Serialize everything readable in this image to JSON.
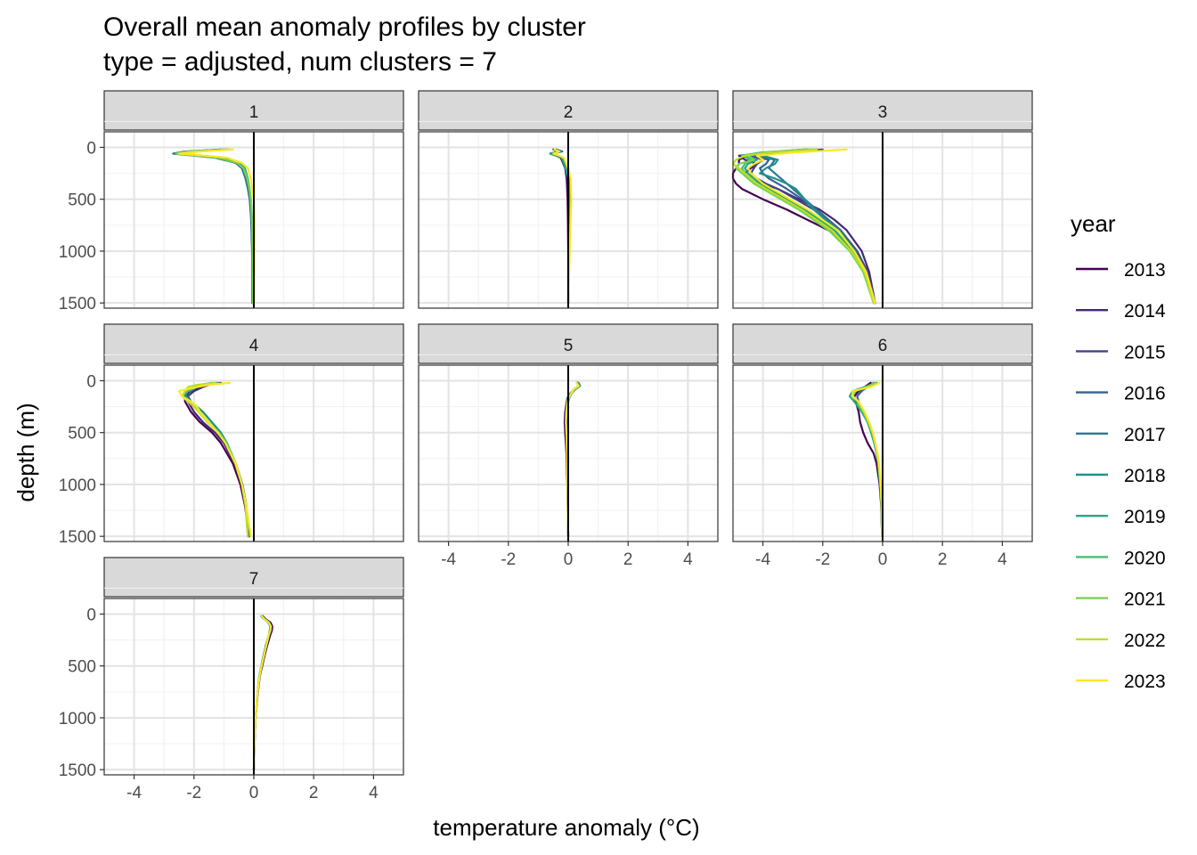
{
  "chart_data": {
    "type": "line",
    "title": "Overall mean anomaly profiles by cluster",
    "subtitle": "type = adjusted, num clusters = 7",
    "xlabel": "temperature anomaly (°C)",
    "ylabel": "depth (m)",
    "xlim": [
      -5,
      5
    ],
    "ylim": [
      1550,
      -150
    ],
    "x_ticks": [
      -4,
      -2,
      0,
      2,
      4
    ],
    "y_ticks": [
      0,
      500,
      1000,
      1500
    ],
    "x_tick_labels": [
      "-4",
      "-2",
      "0",
      "2",
      "4"
    ],
    "y_tick_labels": [
      "0",
      "500",
      "1000",
      "1500"
    ],
    "grid": true,
    "zero_line": 0,
    "legend": {
      "title": "year",
      "position": "right",
      "items": [
        {
          "label": "2013",
          "color": "#440154"
        },
        {
          "label": "2014",
          "color": "#482576"
        },
        {
          "label": "2015",
          "color": "#414487"
        },
        {
          "label": "2016",
          "color": "#35608D"
        },
        {
          "label": "2017",
          "color": "#2A788E"
        },
        {
          "label": "2018",
          "color": "#21908C"
        },
        {
          "label": "2019",
          "color": "#22A884"
        },
        {
          "label": "2020",
          "color": "#43BF71"
        },
        {
          "label": "2021",
          "color": "#7AD151"
        },
        {
          "label": "2022",
          "color": "#BBDF27"
        },
        {
          "label": "2023",
          "color": "#FDE725"
        }
      ]
    },
    "panels": [
      {
        "label": "1",
        "depth": [
          20,
          40,
          60,
          80,
          100,
          150,
          200,
          300,
          400,
          500,
          700,
          1000,
          1500
        ],
        "series": [
          {
            "year": "2013",
            "values": [
              -1.1,
              -2.2,
              -2.6,
              -1.9,
              -1.2,
              -0.6,
              -0.4,
              -0.25,
              -0.18,
              -0.12,
              -0.08,
              -0.05,
              -0.05
            ]
          },
          {
            "year": "2015",
            "values": [
              -0.9,
              -2.1,
              -2.5,
              -1.8,
              -1.1,
              -0.5,
              -0.35,
              -0.22,
              -0.16,
              -0.11,
              -0.07,
              -0.05,
              -0.05
            ]
          },
          {
            "year": "2017",
            "values": [
              -1.0,
              -2.3,
              -2.7,
              -2.0,
              -1.3,
              -0.6,
              -0.4,
              -0.28,
              -0.2,
              -0.14,
              -0.09,
              -0.06,
              -0.05
            ]
          },
          {
            "year": "2019",
            "values": [
              -0.8,
              -2.0,
              -2.4,
              -1.7,
              -1.0,
              -0.5,
              -0.3,
              -0.2,
              -0.14,
              -0.1,
              -0.06,
              -0.04,
              -0.04
            ]
          },
          {
            "year": "2021",
            "values": [
              -0.9,
              -2.2,
              -2.6,
              -1.9,
              -1.2,
              -0.55,
              -0.35,
              -0.22,
              -0.15,
              -0.1,
              -0.06,
              -0.04,
              -0.04
            ]
          },
          {
            "year": "2023",
            "values": [
              -0.7,
              -1.8,
              -2.5,
              -1.6,
              -0.9,
              -0.4,
              -0.2,
              -0.1,
              -0.05,
              0.0,
              0.02,
              0.02,
              0.0
            ]
          }
        ]
      },
      {
        "label": "2",
        "depth": [
          20,
          40,
          60,
          80,
          100,
          200,
          300,
          500,
          700,
          1000,
          1500
        ],
        "series": [
          {
            "year": "2013",
            "values": [
              -0.5,
              -0.3,
              -0.6,
              -0.4,
              -0.25,
              -0.1,
              -0.05,
              -0.02,
              -0.01,
              0.0,
              0.0
            ]
          },
          {
            "year": "2016",
            "values": [
              -0.4,
              -0.2,
              -0.55,
              -0.35,
              -0.2,
              -0.08,
              0.02,
              0.05,
              0.05,
              0.03,
              0.0
            ]
          },
          {
            "year": "2019",
            "values": [
              -0.5,
              -0.25,
              -0.6,
              -0.38,
              -0.22,
              -0.09,
              0.0,
              0.04,
              0.04,
              0.02,
              0.0
            ]
          },
          {
            "year": "2023",
            "values": [
              -0.45,
              -0.3,
              -0.5,
              -0.3,
              -0.15,
              0.0,
              0.08,
              0.1,
              0.08,
              0.05,
              0.0
            ]
          }
        ]
      },
      {
        "label": "3",
        "depth": [
          20,
          50,
          80,
          120,
          160,
          200,
          250,
          300,
          350,
          400,
          500,
          600,
          700,
          800,
          1000,
          1200,
          1500
        ],
        "series": [
          {
            "year": "2013",
            "values": [
              -2.2,
              -3.5,
              -4.5,
              -4.8,
              -4.8,
              -4.9,
              -5.0,
              -5.0,
              -4.9,
              -4.7,
              -4.0,
              -3.2,
              -2.5,
              -1.8,
              -1.0,
              -0.55,
              -0.25
            ]
          },
          {
            "year": "2014",
            "values": [
              -2.5,
              -3.8,
              -4.8,
              -4.6,
              -4.2,
              -4.4,
              -4.6,
              -4.4,
              -4.0,
              -3.5,
              -2.8,
              -2.1,
              -1.6,
              -1.2,
              -0.7,
              -0.45,
              -0.25
            ]
          },
          {
            "year": "2015",
            "values": [
              -2.0,
              -3.6,
              -4.4,
              -4.0,
              -4.2,
              -4.3,
              -4.4,
              -4.2,
              -3.9,
              -3.5,
              -2.9,
              -2.3,
              -1.8,
              -1.4,
              -0.85,
              -0.5,
              -0.25
            ]
          },
          {
            "year": "2016",
            "values": [
              -2.6,
              -3.9,
              -4.4,
              -3.8,
              -3.9,
              -4.1,
              -4.0,
              -3.8,
              -3.5,
              -3.2,
              -2.7,
              -2.2,
              -1.8,
              -1.4,
              -0.9,
              -0.55,
              -0.25
            ]
          },
          {
            "year": "2017",
            "values": [
              -2.3,
              -3.7,
              -4.2,
              -3.6,
              -3.7,
              -3.8,
              -3.6,
              -3.4,
              -3.2,
              -3.0,
              -2.6,
              -2.2,
              -1.8,
              -1.4,
              -0.9,
              -0.55,
              -0.25
            ]
          },
          {
            "year": "2018",
            "values": [
              -2.4,
              -3.8,
              -4.0,
              -3.5,
              -3.6,
              -3.9,
              -4.1,
              -3.6,
              -3.2,
              -2.9,
              -2.6,
              -2.3,
              -1.9,
              -1.5,
              -0.95,
              -0.6,
              -0.25
            ]
          },
          {
            "year": "2019",
            "values": [
              -2.5,
              -4.0,
              -4.6,
              -4.2,
              -4.5,
              -4.6,
              -4.5,
              -4.3,
              -4.1,
              -3.8,
              -3.2,
              -2.6,
              -2.1,
              -1.6,
              -1.0,
              -0.6,
              -0.3
            ]
          },
          {
            "year": "2020",
            "values": [
              -2.6,
              -4.1,
              -4.7,
              -4.4,
              -4.6,
              -4.7,
              -4.6,
              -4.4,
              -4.2,
              -3.9,
              -3.3,
              -2.7,
              -2.2,
              -1.7,
              -1.05,
              -0.65,
              -0.3
            ]
          },
          {
            "year": "2021",
            "values": [
              -2.4,
              -3.9,
              -4.5,
              -4.3,
              -4.8,
              -4.9,
              -4.7,
              -4.5,
              -4.3,
              -4.0,
              -3.4,
              -2.8,
              -2.3,
              -1.8,
              -1.1,
              -0.65,
              -0.3
            ]
          },
          {
            "year": "2022",
            "values": [
              -2.2,
              -3.8,
              -4.6,
              -4.9,
              -5.0,
              -4.8,
              -4.6,
              -4.4,
              -4.2,
              -3.9,
              -3.3,
              -2.7,
              -2.2,
              -1.7,
              -1.05,
              -0.6,
              -0.3
            ]
          },
          {
            "year": "2023",
            "values": [
              -1.2,
              -3.0,
              -4.2,
              -4.0,
              -4.3,
              -4.5,
              -4.4,
              -4.2,
              -4.0,
              -3.7,
              -3.1,
              -2.5,
              -2.0,
              -1.5,
              -0.95,
              -0.55,
              -0.25
            ]
          }
        ]
      },
      {
        "label": "4",
        "depth": [
          20,
          40,
          60,
          100,
          150,
          200,
          250,
          300,
          400,
          500,
          600,
          800,
          1000,
          1200,
          1500
        ],
        "series": [
          {
            "year": "2013",
            "values": [
              -1.2,
              -1.6,
              -1.8,
              -2.1,
              -2.3,
              -2.3,
              -2.2,
              -2.1,
              -1.8,
              -1.4,
              -1.1,
              -0.7,
              -0.45,
              -0.3,
              -0.15
            ]
          },
          {
            "year": "2014",
            "values": [
              -1.1,
              -1.5,
              -1.7,
              -2.0,
              -2.2,
              -2.2,
              -2.1,
              -2.0,
              -1.7,
              -1.3,
              -1.0,
              -0.65,
              -0.4,
              -0.27,
              -0.15
            ]
          },
          {
            "year": "2016",
            "values": [
              -1.3,
              -1.7,
              -1.9,
              -2.1,
              -2.2,
              -2.1,
              -2.0,
              -1.8,
              -1.5,
              -1.2,
              -0.95,
              -0.6,
              -0.38,
              -0.25,
              -0.2
            ]
          },
          {
            "year": "2018",
            "values": [
              -1.4,
              -1.8,
              -2.0,
              -2.2,
              -2.3,
              -2.1,
              -1.9,
              -1.7,
              -1.4,
              -1.1,
              -0.9,
              -0.6,
              -0.38,
              -0.25,
              -0.2
            ]
          },
          {
            "year": "2020",
            "values": [
              -1.2,
              -1.6,
              -1.9,
              -2.2,
              -2.4,
              -2.2,
              -2.0,
              -1.8,
              -1.5,
              -1.15,
              -0.9,
              -0.6,
              -0.4,
              -0.28,
              -0.2
            ]
          },
          {
            "year": "2022",
            "values": [
              -1.3,
              -1.9,
              -2.2,
              -2.3,
              -2.4,
              -2.2,
              -2.0,
              -1.85,
              -1.55,
              -1.2,
              -0.95,
              -0.62,
              -0.4,
              -0.28,
              -0.2
            ]
          },
          {
            "year": "2023",
            "values": [
              -0.8,
              -1.5,
              -1.9,
              -2.5,
              -2.4,
              -2.1,
              -1.9,
              -1.8,
              -1.5,
              -1.2,
              -0.95,
              -0.6,
              -0.4,
              -0.25,
              -0.1
            ]
          }
        ]
      },
      {
        "label": "5",
        "depth": [
          20,
          50,
          80,
          120,
          160,
          200,
          300,
          400,
          500,
          700,
          1000,
          1500
        ],
        "series": [
          {
            "year": "2013",
            "values": [
              0.3,
              0.35,
              0.2,
              0.1,
              0.0,
              -0.05,
              -0.1,
              -0.12,
              -0.1,
              -0.06,
              -0.03,
              0.0
            ]
          },
          {
            "year": "2016",
            "values": [
              0.32,
              0.38,
              0.22,
              0.08,
              -0.02,
              -0.05,
              -0.08,
              -0.08,
              -0.06,
              -0.04,
              -0.02,
              0.0
            ]
          },
          {
            "year": "2019",
            "values": [
              0.35,
              0.4,
              0.25,
              0.12,
              0.05,
              0.0,
              -0.05,
              -0.06,
              -0.05,
              -0.03,
              -0.02,
              0.0
            ]
          },
          {
            "year": "2023",
            "values": [
              0.28,
              0.35,
              0.2,
              0.1,
              0.03,
              -0.02,
              -0.06,
              -0.08,
              -0.06,
              -0.04,
              -0.02,
              0.0
            ]
          }
        ]
      },
      {
        "label": "6",
        "depth": [
          20,
          60,
          100,
          150,
          200,
          300,
          400,
          500,
          600,
          700,
          800,
          1000,
          1200,
          1500
        ],
        "series": [
          {
            "year": "2013",
            "values": [
              -0.4,
              -0.6,
              -0.8,
              -0.95,
              -0.9,
              -0.8,
              -0.75,
              -0.65,
              -0.5,
              -0.3,
              -0.2,
              -0.1,
              -0.05,
              -0.02
            ]
          },
          {
            "year": "2016",
            "values": [
              -0.3,
              -0.5,
              -0.7,
              -0.85,
              -0.8,
              -0.65,
              -0.5,
              -0.38,
              -0.28,
              -0.2,
              -0.15,
              -0.08,
              -0.04,
              -0.02
            ]
          },
          {
            "year": "2019",
            "values": [
              -0.2,
              -0.6,
              -1.0,
              -1.1,
              -0.95,
              -0.7,
              -0.5,
              -0.38,
              -0.28,
              -0.2,
              -0.15,
              -0.08,
              -0.04,
              -0.02
            ]
          },
          {
            "year": "2021",
            "values": [
              -0.25,
              -0.55,
              -0.9,
              -1.0,
              -0.85,
              -0.65,
              -0.48,
              -0.35,
              -0.26,
              -0.19,
              -0.14,
              -0.08,
              -0.04,
              -0.02
            ]
          },
          {
            "year": "2023",
            "values": [
              -0.1,
              -0.4,
              -1.0,
              -1.0,
              -0.8,
              -0.6,
              -0.45,
              -0.32,
              -0.24,
              -0.17,
              -0.12,
              -0.06,
              -0.03,
              -0.02
            ]
          }
        ]
      },
      {
        "label": "7",
        "depth": [
          20,
          50,
          80,
          120,
          160,
          200,
          300,
          400,
          500,
          600,
          800,
          1000,
          1200,
          1500
        ],
        "series": [
          {
            "year": "2013",
            "values": [
              0.3,
              0.4,
              0.55,
              0.62,
              0.6,
              0.55,
              0.45,
              0.36,
              0.28,
              0.2,
              0.12,
              0.06,
              0.03,
              0.0
            ]
          },
          {
            "year": "2016",
            "values": [
              0.28,
              0.38,
              0.5,
              0.58,
              0.56,
              0.52,
              0.42,
              0.34,
              0.26,
              0.19,
              0.11,
              0.06,
              0.03,
              0.0
            ]
          },
          {
            "year": "2019",
            "values": [
              0.25,
              0.35,
              0.48,
              0.55,
              0.53,
              0.5,
              0.4,
              0.32,
              0.25,
              0.18,
              0.11,
              0.06,
              0.03,
              0.0
            ]
          },
          {
            "year": "2023",
            "values": [
              0.27,
              0.36,
              0.5,
              0.57,
              0.55,
              0.5,
              0.42,
              0.34,
              0.26,
              0.19,
              0.11,
              0.06,
              0.03,
              0.0
            ]
          }
        ]
      }
    ]
  }
}
